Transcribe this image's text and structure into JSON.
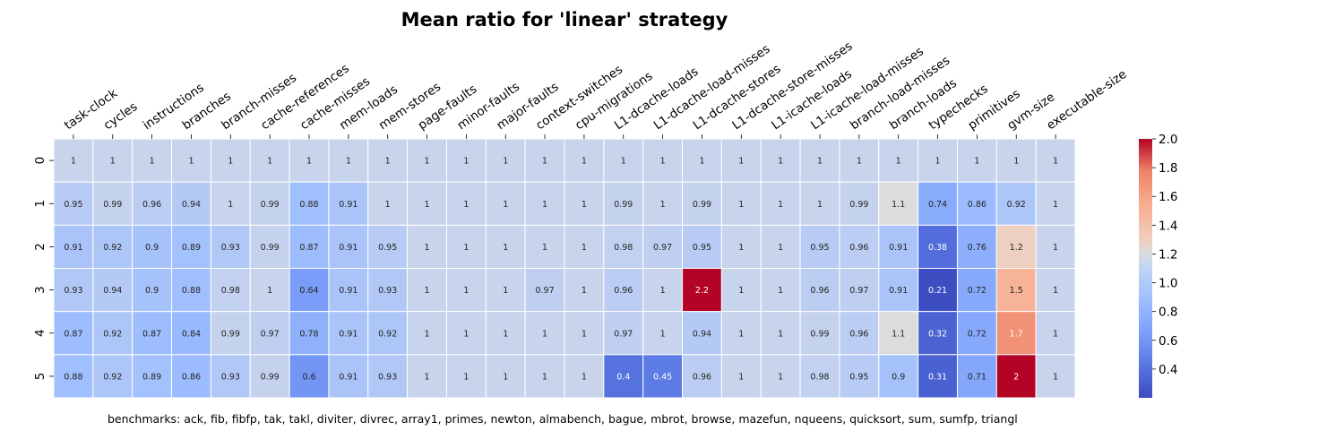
{
  "chart_data": {
    "type": "heatmap",
    "title": "Mean ratio for 'linear' strategy",
    "columns": [
      "task-clock",
      "cycles",
      "instructions",
      "branches",
      "branch-misses",
      "cache-references",
      "cache-misses",
      "mem-loads",
      "mem-stores",
      "page-faults",
      "minor-faults",
      "major-faults",
      "context-switches",
      "cpu-migrations",
      "L1-dcache-loads",
      "L1-dcache-load-misses",
      "L1-dcache-stores",
      "L1-dcache-store-misses",
      "L1-icache-loads",
      "L1-icache-load-misses",
      "branch-load-misses",
      "branch-loads",
      "typechecks",
      "primitives",
      "gvm-size",
      "executable-size"
    ],
    "rows": [
      "0",
      "1",
      "2",
      "3",
      "4",
      "5"
    ],
    "values": [
      [
        1,
        1,
        1,
        1,
        1,
        1,
        1,
        1,
        1,
        1,
        1,
        1,
        1,
        1,
        1,
        1,
        1,
        1,
        1,
        1,
        1,
        1,
        1,
        1,
        1,
        1
      ],
      [
        0.95,
        0.99,
        0.96,
        0.94,
        1,
        0.99,
        0.88,
        0.91,
        1,
        1,
        1,
        1,
        1,
        1,
        0.99,
        1,
        0.99,
        1,
        1,
        1,
        0.99,
        1.1,
        0.74,
        0.86,
        0.92,
        1
      ],
      [
        0.91,
        0.92,
        0.9,
        0.89,
        0.93,
        0.99,
        0.87,
        0.91,
        0.95,
        1,
        1,
        1,
        1,
        1,
        0.98,
        0.97,
        0.95,
        1,
        1,
        0.95,
        0.96,
        0.91,
        0.38,
        0.76,
        1.2,
        1
      ],
      [
        0.93,
        0.94,
        0.9,
        0.88,
        0.98,
        1,
        0.64,
        0.91,
        0.93,
        1,
        1,
        1,
        0.97,
        1,
        0.96,
        1,
        2.2,
        1,
        1,
        0.96,
        0.97,
        0.91,
        0.21,
        0.72,
        1.5,
        1
      ],
      [
        0.87,
        0.92,
        0.87,
        0.84,
        0.99,
        0.97,
        0.78,
        0.91,
        0.92,
        1,
        1,
        1,
        1,
        1,
        0.97,
        1,
        0.94,
        1,
        1,
        0.99,
        0.96,
        1.1,
        0.32,
        0.72,
        1.7,
        1
      ],
      [
        0.88,
        0.92,
        0.89,
        0.86,
        0.93,
        0.99,
        0.6,
        0.91,
        0.93,
        1,
        1,
        1,
        1,
        1,
        0.4,
        0.45,
        0.96,
        1,
        1,
        0.98,
        0.95,
        0.9,
        0.31,
        0.71,
        2,
        1
      ]
    ],
    "colorbar": {
      "min": 0.2,
      "max": 2.0,
      "ticks": [
        0.4,
        0.6,
        0.8,
        1.0,
        1.2,
        1.4,
        1.6,
        1.8,
        2.0
      ],
      "colormap": "coolwarm"
    },
    "footnote": "benchmarks: ack, fib, fibfp, tak, takl, diviter, divrec, array1, primes, newton, almabench, bague, mbrot, browse, mazefun, nqueens, quicksort, sum, sumfp, triangl"
  }
}
